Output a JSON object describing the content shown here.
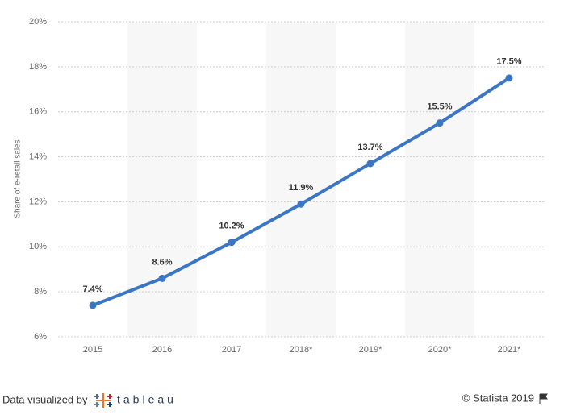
{
  "chart_data": {
    "type": "line",
    "y_axis_label": "Share of e-retail sales",
    "categories": [
      "2015",
      "2016",
      "2017",
      "2018*",
      "2019*",
      "2020*",
      "2021*"
    ],
    "series": [
      {
        "name": "Share of e-retail sales",
        "color": "#3a76c4",
        "values": [
          7.4,
          8.6,
          10.2,
          11.9,
          13.7,
          15.5,
          17.5
        ],
        "value_labels": [
          "7.4%",
          "8.6%",
          "10.2%",
          "11.9%",
          "13.7%",
          "15.5%",
          "17.5%"
        ]
      }
    ],
    "ylim": [
      6,
      20
    ],
    "yticks": [
      {
        "value": 6,
        "label": "6%"
      },
      {
        "value": 8,
        "label": "8%"
      },
      {
        "value": 10,
        "label": "10%"
      },
      {
        "value": 12,
        "label": "12%"
      },
      {
        "value": 14,
        "label": "14%"
      },
      {
        "value": 16,
        "label": "16%"
      },
      {
        "value": 18,
        "label": "18%"
      },
      {
        "value": 20,
        "label": "20%"
      }
    ],
    "grid": true
  },
  "footer": {
    "credit": "Data visualized by",
    "brand": "tableau",
    "copyright": "© Statista 2019"
  }
}
